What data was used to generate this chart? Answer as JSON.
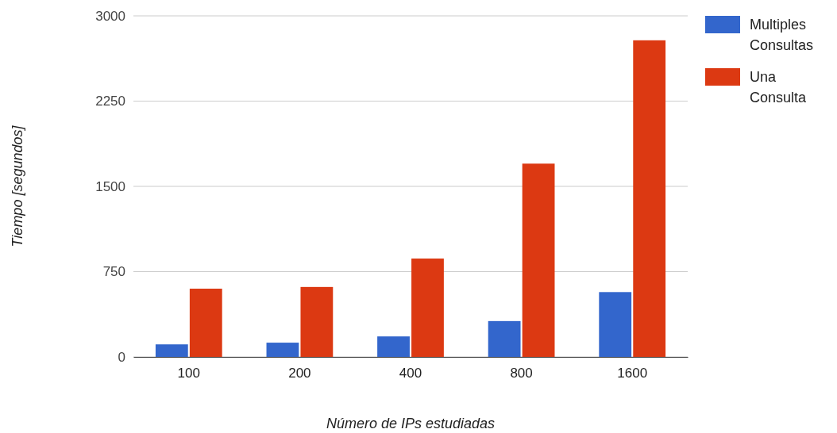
{
  "chart_data": {
    "type": "bar",
    "xlabel": "Número de IPs estudiadas",
    "ylabel": "Tiempo [segundos]",
    "categories": [
      "100",
      "200",
      "400",
      "800",
      "1600"
    ],
    "series": [
      {
        "name": "Multiples Consultas",
        "color": "#3366cc",
        "values": [
          110,
          125,
          180,
          315,
          570
        ]
      },
      {
        "name": "Una Consulta",
        "color": "#dc3912",
        "values": [
          600,
          615,
          865,
          1700,
          2785
        ]
      }
    ],
    "ylim": [
      0,
      3000
    ],
    "yticks": [
      0,
      750,
      1500,
      2250,
      3000
    ],
    "grid": "y",
    "legend": "top right"
  }
}
